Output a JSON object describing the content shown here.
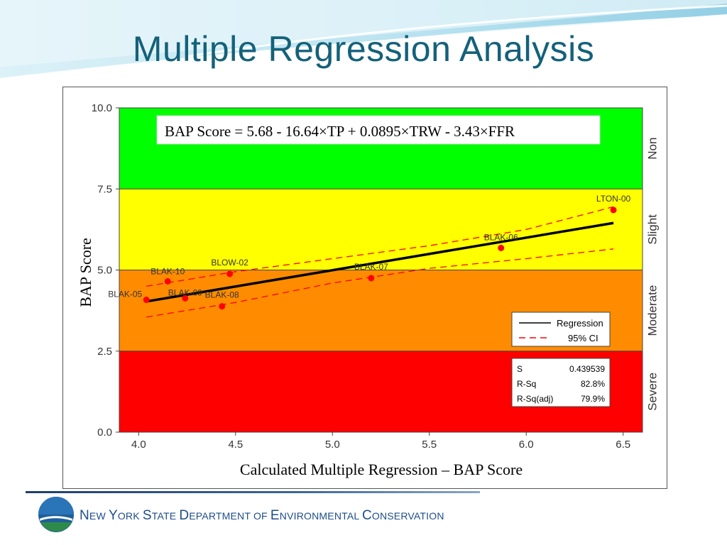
{
  "slide": {
    "title": "Multiple Regression Analysis",
    "footer_words": [
      {
        "initial": "N",
        "rest": "EW "
      },
      {
        "initial": "Y",
        "rest": "ORK "
      },
      {
        "initial": "S",
        "rest": "TATE "
      },
      {
        "initial": "D",
        "rest": "EPARTMENT OF "
      },
      {
        "initial": "E",
        "rest": "NVIRONMENTAL "
      },
      {
        "initial": "C",
        "rest": "ONSERVATION"
      }
    ]
  },
  "colors": {
    "title": "#14617a",
    "band_non": "#00ff00",
    "band_slight": "#ffff00",
    "band_moderate": "#ff8c00",
    "band_severe": "#ff0000",
    "points": "#ff0000",
    "regression": "#000000",
    "ci": "#ff0000"
  },
  "chart_data": {
    "type": "scatter",
    "equation": "BAP Score = 5.68 - 16.64×TP + 0.0895×TRW - 3.43×FFR",
    "xlabel": "Calculated Multiple Regression – BAP Score",
    "ylabel": "BAP Score",
    "xlim": [
      3.9,
      6.6
    ],
    "ylim": [
      0,
      10
    ],
    "xticks": [
      "4.0",
      "4.5",
      "5.0",
      "5.5",
      "6.0",
      "6.5"
    ],
    "yticks": [
      "0.0",
      "2.5",
      "5.0",
      "7.5",
      "10.0"
    ],
    "bands": [
      {
        "label": "Severe",
        "from": 0,
        "to": 2.5
      },
      {
        "label": "Moderate",
        "from": 2.5,
        "to": 5.0
      },
      {
        "label": "Slight",
        "from": 5.0,
        "to": 7.5
      },
      {
        "label": "Non",
        "from": 7.5,
        "to": 10.0
      }
    ],
    "points": [
      {
        "label": "BLAK-05",
        "x": 4.04,
        "y": 4.08
      },
      {
        "label": "BLAK-10",
        "x": 4.15,
        "y": 4.65
      },
      {
        "label": "BLAK-09",
        "x": 4.24,
        "y": 4.13
      },
      {
        "label": "BLAK-08",
        "x": 4.43,
        "y": 3.88
      },
      {
        "label": "BLOW-02",
        "x": 4.47,
        "y": 4.88
      },
      {
        "label": "BLAK-07",
        "x": 5.2,
        "y": 4.75
      },
      {
        "label": "BLAK-06",
        "x": 5.87,
        "y": 5.68
      },
      {
        "label": "LTON-00",
        "x": 6.45,
        "y": 6.85
      }
    ],
    "regression": [
      [
        4.04,
        4.03
      ],
      [
        6.45,
        6.45
      ]
    ],
    "ci_upper": [
      [
        4.04,
        4.5
      ],
      [
        4.5,
        4.95
      ],
      [
        5.0,
        5.35
      ],
      [
        5.5,
        5.75
      ],
      [
        6.0,
        6.25
      ],
      [
        6.45,
        6.95
      ]
    ],
    "ci_lower": [
      [
        4.04,
        3.55
      ],
      [
        4.5,
        4.0
      ],
      [
        5.0,
        4.6
      ],
      [
        5.5,
        5.05
      ],
      [
        6.0,
        5.35
      ],
      [
        6.45,
        5.65
      ]
    ],
    "legend": [
      {
        "label": "Regression",
        "style": "solid"
      },
      {
        "label": "95% CI",
        "style": "dashed"
      }
    ],
    "stats": [
      {
        "label": "S",
        "value": "0.439539"
      },
      {
        "label": "R-Sq",
        "value": "82.8%"
      },
      {
        "label": "R-Sq(adj)",
        "value": "79.9%"
      }
    ]
  }
}
